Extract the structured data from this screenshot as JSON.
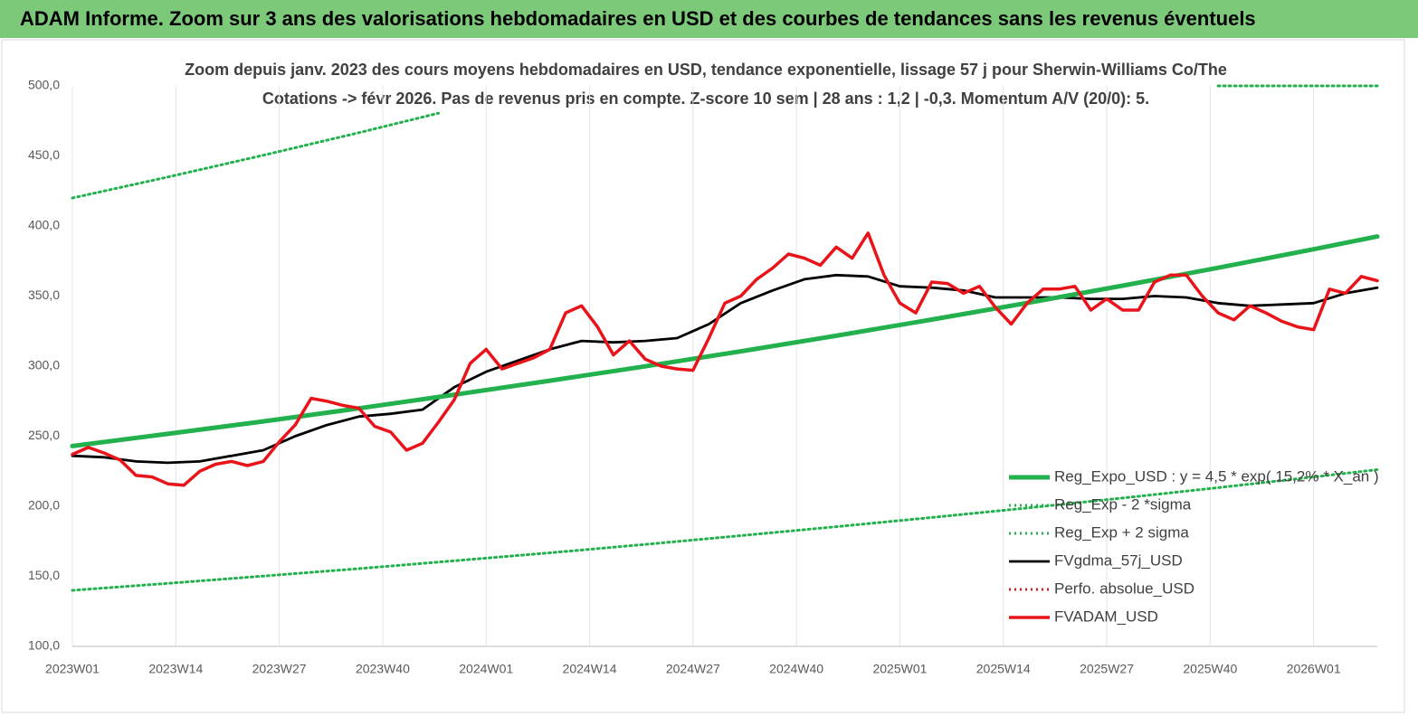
{
  "header": {
    "title": "ADAM Informe. Zoom sur 3 ans des valorisations hebdomadaires en USD et des courbes de tendances sans les revenus éventuels"
  },
  "chart_data": {
    "type": "line",
    "title": "Zoom depuis janv. 2023 des cours moyens  hebdomadaires en USD, tendance exponentielle, lissage 57 j pour Sherwin-Williams Co/The",
    "subtitle": "Cotations -> févr 2026.  Pas de revenus pris en compte.  Z-score 10 sem  | 28 ans : 1,2 | -0,3. Momentum A/V (20/0): 5.",
    "xlim": [
      0,
      164
    ],
    "xticks": [
      {
        "value": 0,
        "label": "2023W01"
      },
      {
        "value": 13,
        "label": "2023W14"
      },
      {
        "value": 26,
        "label": "2023W27"
      },
      {
        "value": 39,
        "label": "2023W40"
      },
      {
        "value": 52,
        "label": "2024W01"
      },
      {
        "value": 65,
        "label": "2024W14"
      },
      {
        "value": 78,
        "label": "2024W27"
      },
      {
        "value": 91,
        "label": "2024W40"
      },
      {
        "value": 104,
        "label": "2025W01"
      },
      {
        "value": 117,
        "label": "2025W14"
      },
      {
        "value": 130,
        "label": "2025W27"
      },
      {
        "value": 143,
        "label": "2025W40"
      },
      {
        "value": 156,
        "label": "2026W01"
      }
    ],
    "ylim": [
      100,
      500
    ],
    "yticks": [
      {
        "value": 100,
        "label": "100,0"
      },
      {
        "value": 150,
        "label": "150,0"
      },
      {
        "value": 200,
        "label": "200,0"
      },
      {
        "value": 250,
        "label": "250,0"
      },
      {
        "value": 300,
        "label": "300,0"
      },
      {
        "value": 350,
        "label": "350,0"
      },
      {
        "value": 400,
        "label": "400,0"
      },
      {
        "value": 450,
        "label": "450,0"
      },
      {
        "value": 500,
        "label": "500,0"
      }
    ],
    "grid": "x",
    "legend": "lower right",
    "series": [
      {
        "name": "Reg_Expo_USD : y = 4,5 * exp( 15,2% * X_an )",
        "color": "#22b14c",
        "style": "solid",
        "x": [
          0,
          12,
          24,
          36,
          48,
          60,
          72,
          84,
          96,
          108,
          120,
          132,
          144,
          156,
          164
        ],
        "values": [
          243,
          251.7,
          260.6,
          269.9,
          279.6,
          289.6,
          299.9,
          310.6,
          321.7,
          333.2,
          345.1,
          357.4,
          370.2,
          383.4,
          392.5
        ]
      },
      {
        "name": "Reg_Exp - 2 *sigma",
        "color": "#22b14c",
        "style": "dotted",
        "x": [
          0,
          12,
          24,
          36,
          48,
          60,
          72,
          84,
          96,
          108,
          120,
          132,
          144,
          156,
          164
        ],
        "values": [
          140,
          145,
          150.2,
          155.5,
          161.1,
          166.8,
          172.8,
          179,
          185.4,
          192,
          198.8,
          205.9,
          213.3,
          220.9,
          226.1
        ]
      },
      {
        "name": "Reg_Exp + 2 sigma",
        "color": "#22b14c",
        "style": "dotted",
        "x": [
          0,
          12,
          24,
          36,
          46,
          100,
          144,
          164
        ],
        "values": [
          420,
          435,
          450.5,
          466.6,
          480.5,
          null,
          500,
          500
        ]
      },
      {
        "name": "FVgdma_57j_USD",
        "color": "#000000",
        "style": "solid",
        "x": [
          0,
          4,
          8,
          12,
          16,
          20,
          24,
          28,
          32,
          36,
          40,
          44,
          48,
          52,
          56,
          60,
          64,
          68,
          72,
          76,
          80,
          84,
          88,
          92,
          96,
          100,
          104,
          108,
          112,
          116,
          120,
          124,
          128,
          132,
          136,
          140,
          144,
          148,
          152,
          156,
          160,
          164
        ],
        "values": [
          236,
          235,
          232,
          231,
          232,
          236,
          240,
          250,
          258,
          264,
          266,
          269,
          285,
          296,
          304,
          312,
          318,
          317,
          318,
          320,
          330,
          345,
          354,
          362,
          365,
          364,
          357,
          356,
          354,
          349,
          349,
          349,
          348,
          348,
          350,
          349,
          345,
          343,
          344,
          345,
          352,
          356
        ]
      },
      {
        "name": "Perfo. absolue_USD",
        "color": "#e02020",
        "style": "dotted",
        "x": [],
        "values": []
      },
      {
        "name": "FVADAM_USD",
        "color": "#e8141a",
        "style": "solid",
        "x": [
          0,
          2,
          4,
          6,
          8,
          10,
          12,
          14,
          16,
          18,
          20,
          22,
          24,
          26,
          28,
          30,
          32,
          34,
          36,
          38,
          40,
          42,
          44,
          46,
          48,
          50,
          52,
          54,
          56,
          58,
          60,
          62,
          64,
          66,
          68,
          70,
          72,
          74,
          76,
          78,
          80,
          82,
          84,
          86,
          88,
          90,
          92,
          94,
          96,
          98,
          100,
          102,
          104,
          106,
          108,
          110,
          112,
          114,
          116,
          118,
          120,
          122,
          124,
          126,
          128,
          130,
          132,
          134,
          136,
          138,
          140,
          142,
          144,
          146,
          148,
          150,
          152,
          154,
          156,
          158,
          160,
          162,
          164
        ],
        "values": [
          237,
          242,
          238,
          233,
          222,
          221,
          216,
          215,
          225,
          230,
          232,
          229,
          232,
          246,
          258,
          277,
          275,
          272,
          270,
          257,
          253,
          240,
          245,
          260,
          276,
          302,
          312,
          298,
          302,
          306,
          312,
          338,
          343,
          328,
          308,
          318,
          305,
          300,
          298,
          297,
          320,
          345,
          350,
          362,
          370,
          380,
          377,
          372,
          385,
          377,
          395,
          365,
          345,
          338,
          360,
          359,
          352,
          357,
          342,
          330,
          345,
          355,
          355,
          357,
          340,
          348,
          340,
          340,
          360,
          365,
          365,
          350,
          338,
          333,
          343,
          338,
          332,
          328,
          326,
          355,
          352,
          364,
          361
        ]
      }
    ]
  }
}
